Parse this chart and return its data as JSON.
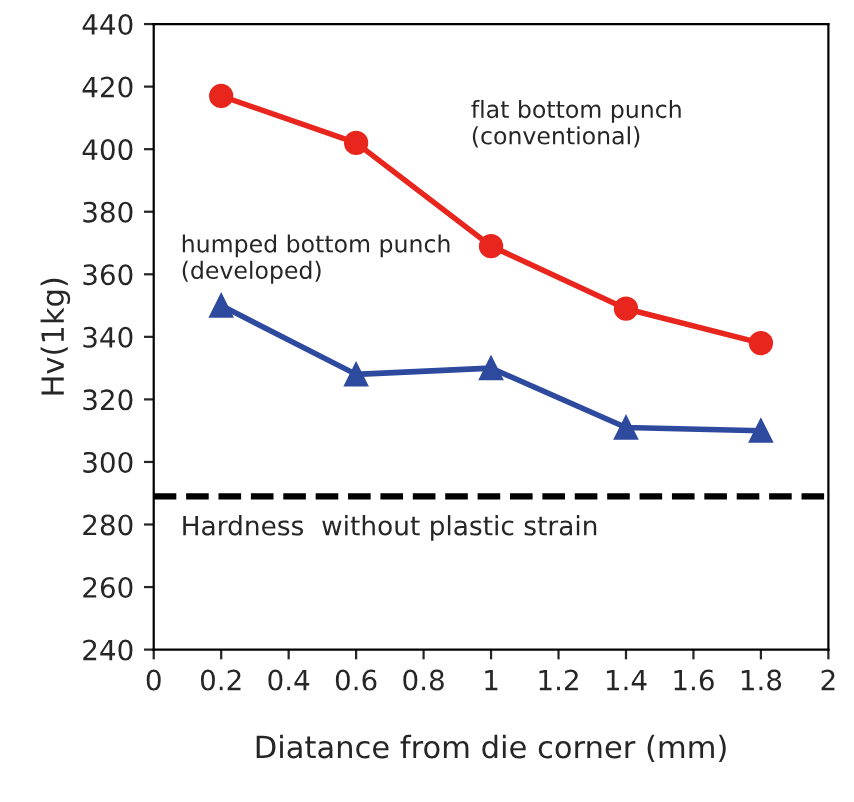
{
  "chart_data": {
    "type": "line",
    "xlabel": "Diatance from die corner (mm)",
    "ylabel": "Hv(1kg)",
    "x": [
      0.2,
      0.6,
      1,
      1.4,
      1.8
    ],
    "series": [
      {
        "name": "flat bottom punch\n(conventional)",
        "color": "#e8261e",
        "marker": "circle",
        "values": [
          417,
          402,
          369,
          349,
          338
        ]
      },
      {
        "name": "humped bottom punch\n(developed)",
        "color": "#2e4a9e",
        "marker": "triangle",
        "values": [
          350,
          328,
          330,
          311,
          310
        ]
      }
    ],
    "xlim": [
      0,
      2
    ],
    "xticks": [
      0,
      0.2,
      0.4,
      0.6,
      0.8,
      1,
      1.2,
      1.4,
      1.6,
      1.8,
      2
    ],
    "ylim": [
      240,
      440
    ],
    "yticks": [
      240,
      260,
      280,
      300,
      320,
      340,
      360,
      380,
      400,
      420,
      440
    ],
    "ref_lines": [
      {
        "axis": "y",
        "value": 289,
        "label": "Hardness  without plastic strain",
        "color": "#000000",
        "line_style": "dashed"
      }
    ],
    "grid": false,
    "legend": false,
    "line_style": "solid"
  }
}
